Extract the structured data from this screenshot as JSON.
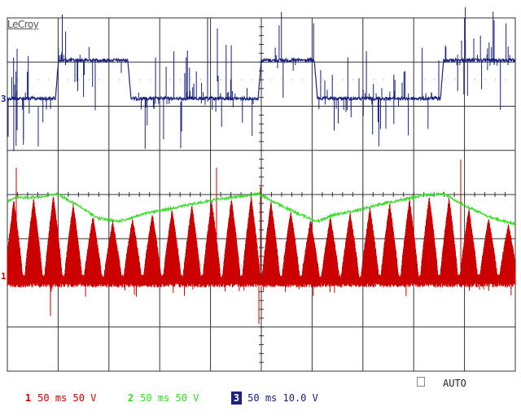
{
  "screen": {
    "brand": "LeCroy",
    "trigger_mode": "AUTO",
    "colors": {
      "grid": "#333333",
      "ch1": "#cc0000",
      "ch2": "#33dd22",
      "ch3": "#1a237e",
      "background": "#ffffff"
    }
  },
  "channels": [
    {
      "id": "1",
      "timebase": "50 ms",
      "scale": "50 V",
      "color": "#cc0000"
    },
    {
      "id": "2",
      "timebase": "50 ms",
      "scale": "50 V",
      "color": "#33dd22"
    },
    {
      "id": "3",
      "timebase": "50 ms",
      "scale": "10.0 V",
      "color": "#1a237e"
    }
  ],
  "markers": {
    "ch3_level": "3",
    "ch1_level": "1"
  }
}
